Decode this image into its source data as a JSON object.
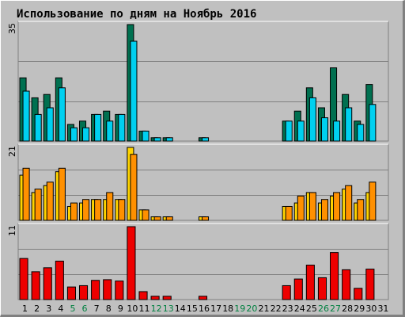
{
  "title": "Использование по дням на Ноябрь 2016",
  "colors": {
    "background": "#c0c0c0",
    "title": "#0000ff",
    "grid": "#808080",
    "weekday_label": "#000000",
    "weekend_label": "#008040",
    "panel1_series_a": "#007050",
    "panel1_series_b": "#00d0f0",
    "panel2_series_a": "#ffd400",
    "panel2_series_b": "#ff9000",
    "panel3_series_a": "#ee0000"
  },
  "chart_data": [
    {
      "type": "bar",
      "panel": "top",
      "ymax": 35,
      "ytick_label": "35",
      "categories": [
        "1",
        "2",
        "3",
        "4",
        "5",
        "6",
        "7",
        "8",
        "9",
        "10",
        "11",
        "12",
        "13",
        "14",
        "15",
        "16",
        "17",
        "18",
        "19",
        "20",
        "21",
        "22",
        "23",
        "24",
        "25",
        "26",
        "27",
        "28",
        "29",
        "30",
        "31"
      ],
      "weekend_days": [
        "5",
        "6",
        "12",
        "13",
        "19",
        "20",
        "26",
        "27"
      ],
      "series": [
        {
          "values": [
            19,
            13,
            14,
            19,
            5,
            6,
            8,
            9,
            8,
            35,
            3,
            1,
            1,
            0,
            0,
            1,
            0,
            0,
            0,
            0,
            0,
            0,
            6,
            9,
            16,
            10,
            22,
            14,
            6,
            17,
            0
          ]
        },
        {
          "values": [
            15,
            8,
            10,
            16,
            4,
            4,
            8,
            6,
            8,
            30,
            3,
            1,
            1,
            0,
            0,
            1,
            0,
            0,
            0,
            0,
            0,
            0,
            6,
            6,
            13,
            7,
            6,
            10,
            5,
            11,
            0
          ]
        }
      ]
    },
    {
      "type": "bar",
      "panel": "middle",
      "ymax": 21,
      "ytick_label": "21",
      "categories": [
        "1",
        "2",
        "3",
        "4",
        "5",
        "6",
        "7",
        "8",
        "9",
        "10",
        "11",
        "12",
        "13",
        "14",
        "15",
        "16",
        "17",
        "18",
        "19",
        "20",
        "21",
        "22",
        "23",
        "24",
        "25",
        "26",
        "27",
        "28",
        "29",
        "30",
        "31"
      ],
      "series": [
        {
          "values": [
            13,
            8,
            10,
            14,
            4,
            5,
            6,
            6,
            6,
            21,
            3,
            1,
            1,
            0,
            0,
            1,
            0,
            0,
            0,
            0,
            0,
            0,
            4,
            5,
            8,
            5,
            7,
            9,
            5,
            8,
            0
          ]
        },
        {
          "values": [
            15,
            9,
            11,
            15,
            5,
            6,
            6,
            8,
            6,
            19,
            3,
            1,
            1,
            0,
            0,
            1,
            0,
            0,
            0,
            0,
            0,
            0,
            4,
            7,
            8,
            6,
            8,
            10,
            6,
            11,
            0
          ]
        }
      ]
    },
    {
      "type": "bar",
      "panel": "bottom",
      "ymax": 11,
      "ytick_label": "11",
      "categories": [
        "1",
        "2",
        "3",
        "4",
        "5",
        "6",
        "7",
        "8",
        "9",
        "10",
        "11",
        "12",
        "13",
        "14",
        "15",
        "16",
        "17",
        "18",
        "19",
        "20",
        "21",
        "22",
        "23",
        "24",
        "25",
        "26",
        "27",
        "28",
        "29",
        "30",
        "31"
      ],
      "series": [
        {
          "values": [
            6.2,
            4.2,
            4.8,
            5.8,
            1.9,
            2.1,
            2.9,
            3.0,
            2.8,
            11,
            1.2,
            0.5,
            0.5,
            0,
            0,
            0.5,
            0,
            0,
            0,
            0,
            0,
            0,
            2.1,
            3.1,
            5.2,
            3.3,
            7.1,
            4.5,
            1.7,
            4.6,
            0
          ]
        }
      ]
    }
  ]
}
